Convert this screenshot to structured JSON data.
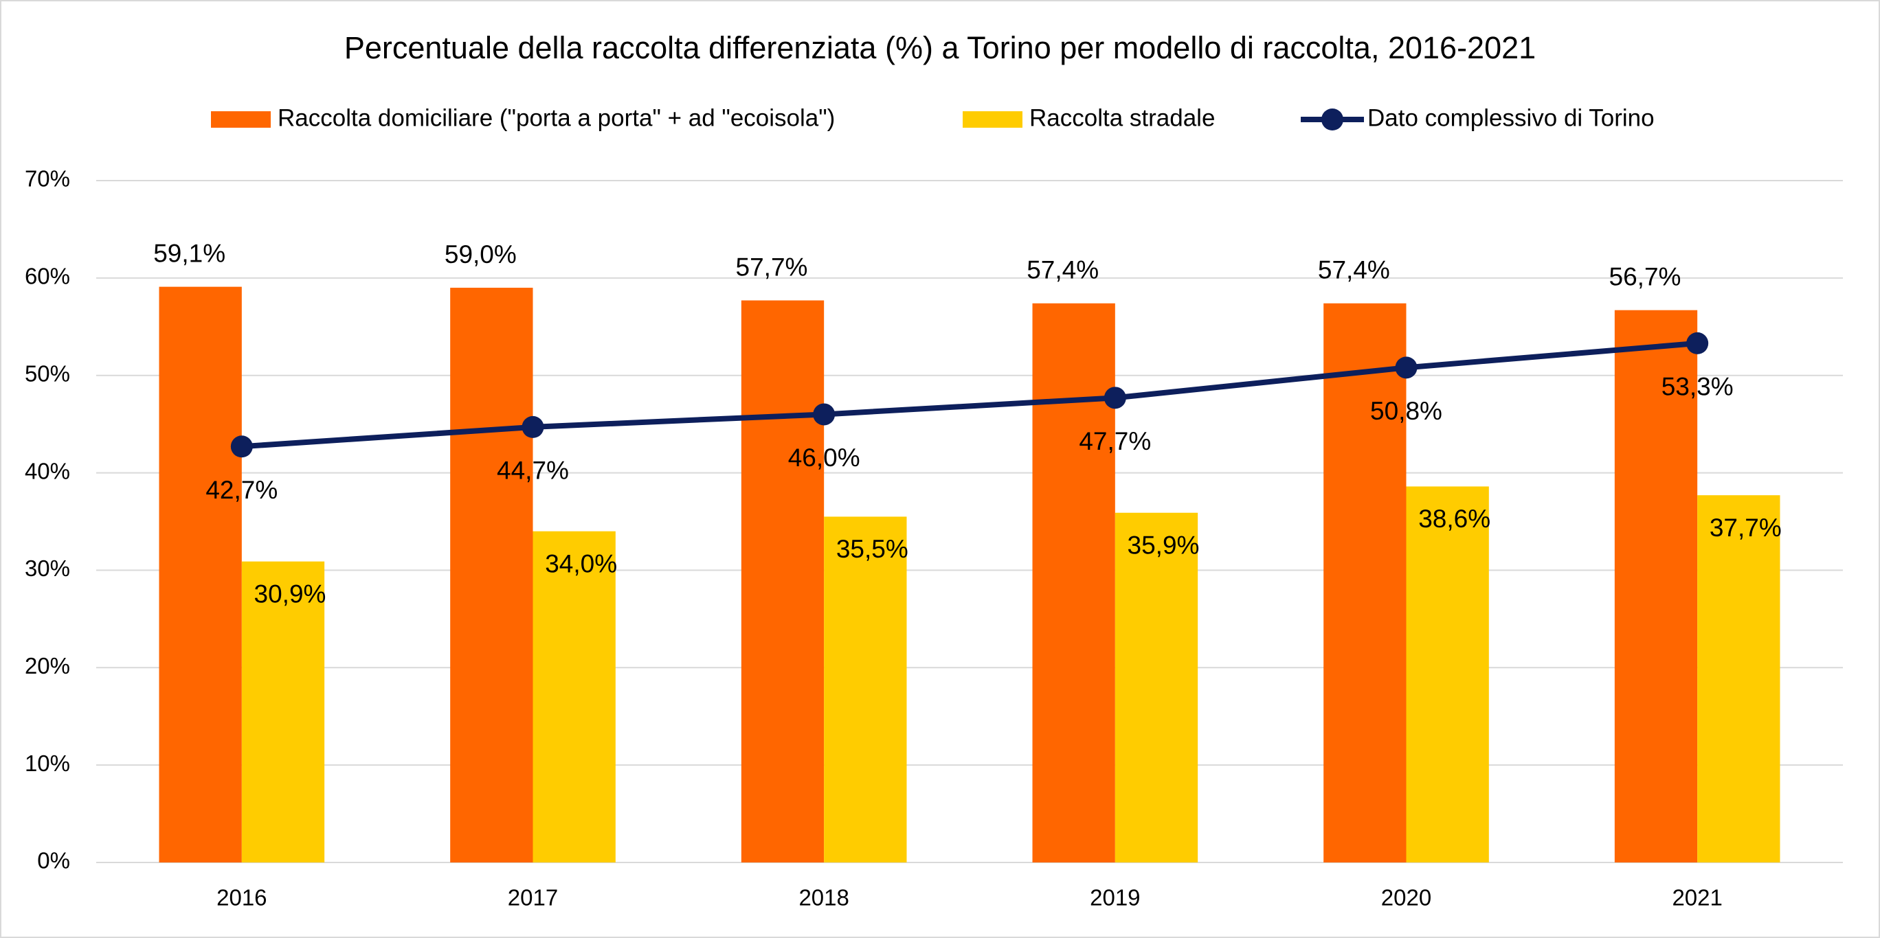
{
  "chart_data": {
    "type": "bar",
    "title": "Percentuale della raccolta differenziata (%) a Torino per modello di raccolta, 2016-2021",
    "categories": [
      "2016",
      "2017",
      "2018",
      "2019",
      "2020",
      "2021"
    ],
    "series": [
      {
        "name": "Raccolta domiciliare (\"porta a porta\" + ad \"ecoisola\")",
        "type": "bar",
        "color": "#ff6600",
        "values": [
          59.1,
          59.0,
          57.7,
          57.4,
          57.4,
          56.7
        ],
        "value_labels": [
          "59,1%",
          "59,0%",
          "57,7%",
          "57,4%",
          "57,4%",
          "56,7%"
        ]
      },
      {
        "name": "Raccolta stradale",
        "type": "bar",
        "color": "#ffcc00",
        "values": [
          30.9,
          34.0,
          35.5,
          35.9,
          38.6,
          37.7
        ],
        "value_labels": [
          "30,9%",
          "34,0%",
          "35,5%",
          "35,9%",
          "38,6%",
          "37,7%"
        ]
      },
      {
        "name": "Dato complessivo di Torino",
        "type": "line",
        "color": "#0d1f5c",
        "values": [
          42.7,
          44.7,
          46.0,
          47.7,
          50.8,
          53.3
        ],
        "value_labels": [
          "42,7%",
          "44,7%",
          "46,0%",
          "47,7%",
          "50,8%",
          "53,3%"
        ]
      }
    ],
    "ylim": [
      0,
      70
    ],
    "yticks": [
      {
        "value": 0,
        "label": "0%"
      },
      {
        "value": 10,
        "label": "10%"
      },
      {
        "value": 20,
        "label": "20%"
      },
      {
        "value": 30,
        "label": "30%"
      },
      {
        "value": 40,
        "label": "40%"
      },
      {
        "value": 50,
        "label": "50%"
      },
      {
        "value": 60,
        "label": "60%"
      },
      {
        "value": 70,
        "label": "70%"
      }
    ],
    "grid": true,
    "legend": "top"
  }
}
